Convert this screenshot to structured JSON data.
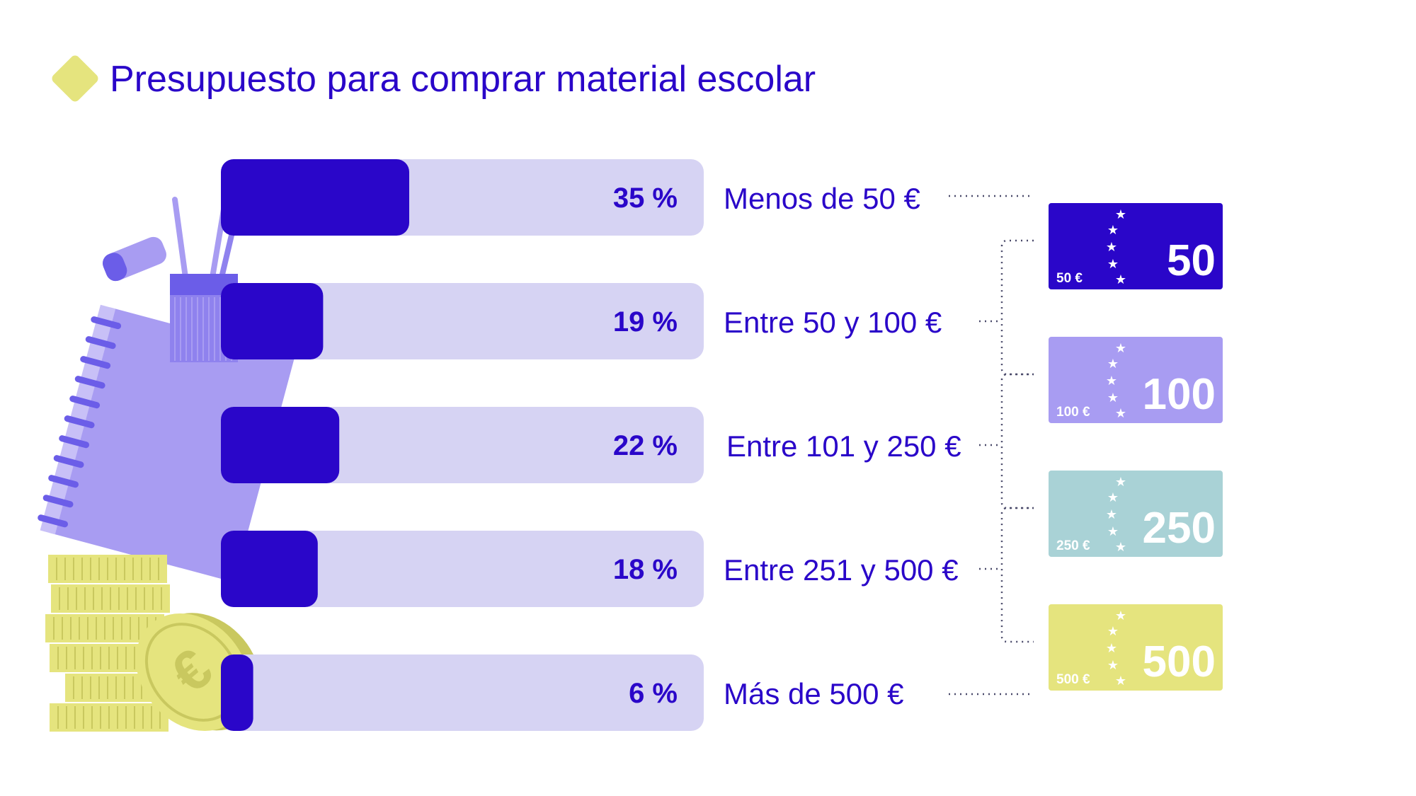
{
  "title": "Presupuesto para comprar material escolar",
  "colors": {
    "accent": "#2a06c9",
    "track": "#d6d3f3",
    "lavender": "#a89cf2",
    "teal": "#a9d2d6",
    "yellow": "#e5e47e"
  },
  "chart_data": {
    "type": "bar",
    "orientation": "horizontal",
    "title": "Presupuesto para comprar material escolar",
    "unit": "%",
    "xlim": [
      0,
      100
    ],
    "categories": [
      "Menos de 50 €",
      "Entre 50 y 100 €",
      "Entre 101 y 250 €",
      "Entre 251 y 500 €",
      "Más de 500 €"
    ],
    "values": [
      35,
      19,
      22,
      18,
      6
    ],
    "value_labels": [
      "35 %",
      "19 %",
      "22 %",
      "18 %",
      "6 %"
    ]
  },
  "banknotes": [
    {
      "big": "50",
      "small": "50 €",
      "color": "#2a06c9",
      "text_color": "#ffffff"
    },
    {
      "big": "100",
      "small": "100 €",
      "color": "#a89cf2",
      "text_color": "#ffffff"
    },
    {
      "big": "250",
      "small": "250 €",
      "color": "#a9d2d6",
      "text_color": "#ffffff"
    },
    {
      "big": "500",
      "small": "500 €",
      "color": "#e5e47e",
      "text_color": "#ffffff"
    }
  ],
  "icons": [
    "eraser-icon",
    "pencil-cup-icon",
    "notebook-icon",
    "coin-stack-icon",
    "euro-coin-icon"
  ]
}
